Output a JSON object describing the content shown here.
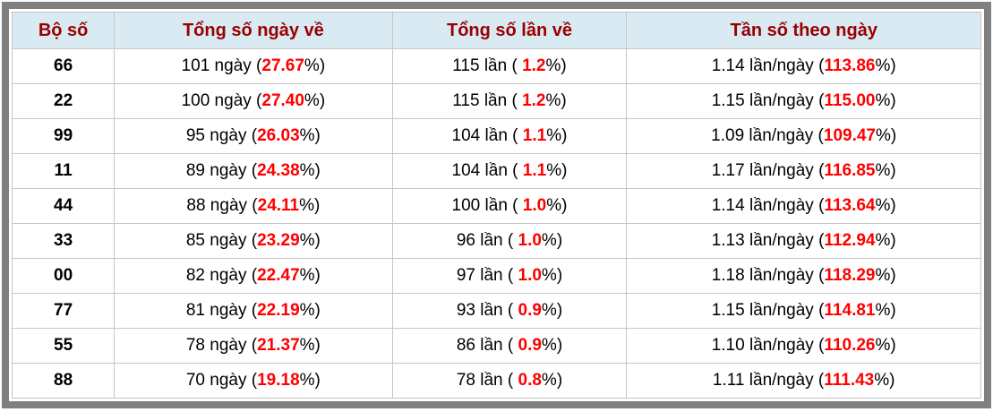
{
  "colors": {
    "header_bg": "#d9eaf3",
    "header_text": "#990000",
    "highlight_red": "#ff0000",
    "frame_gray": "#808080",
    "cell_border": "#c6c6c6"
  },
  "table": {
    "headers": {
      "code": "Bộ số",
      "days": "Tổng số ngày về",
      "times": "Tổng số lần về",
      "freq": "Tần số theo ngày"
    },
    "fmt": {
      "days_mid": " ngày (",
      "times_mid": " lần ( ",
      "freq_mid": " lần/ngày (",
      "pct_close": "%)"
    },
    "rows": [
      {
        "code": "66",
        "days": "101",
        "days_pct": "27.67",
        "times": "115",
        "times_pct": "1.2",
        "freq": "1.14",
        "freq_pct": "113.86"
      },
      {
        "code": "22",
        "days": "100",
        "days_pct": "27.40",
        "times": "115",
        "times_pct": "1.2",
        "freq": "1.15",
        "freq_pct": "115.00"
      },
      {
        "code": "99",
        "days": "95",
        "days_pct": "26.03",
        "times": "104",
        "times_pct": "1.1",
        "freq": "1.09",
        "freq_pct": "109.47"
      },
      {
        "code": "11",
        "days": "89",
        "days_pct": "24.38",
        "times": "104",
        "times_pct": "1.1",
        "freq": "1.17",
        "freq_pct": "116.85"
      },
      {
        "code": "44",
        "days": "88",
        "days_pct": "24.11",
        "times": "100",
        "times_pct": "1.0",
        "freq": "1.14",
        "freq_pct": "113.64"
      },
      {
        "code": "33",
        "days": "85",
        "days_pct": "23.29",
        "times": "96",
        "times_pct": "1.0",
        "freq": "1.13",
        "freq_pct": "112.94"
      },
      {
        "code": "00",
        "days": "82",
        "days_pct": "22.47",
        "times": "97",
        "times_pct": "1.0",
        "freq": "1.18",
        "freq_pct": "118.29"
      },
      {
        "code": "77",
        "days": "81",
        "days_pct": "22.19",
        "times": "93",
        "times_pct": "0.9",
        "freq": "1.15",
        "freq_pct": "114.81"
      },
      {
        "code": "55",
        "days": "78",
        "days_pct": "21.37",
        "times": "86",
        "times_pct": "0.9",
        "freq": "1.10",
        "freq_pct": "110.26"
      },
      {
        "code": "88",
        "days": "70",
        "days_pct": "19.18",
        "times": "78",
        "times_pct": "0.8",
        "freq": "1.11",
        "freq_pct": "111.43"
      }
    ]
  }
}
